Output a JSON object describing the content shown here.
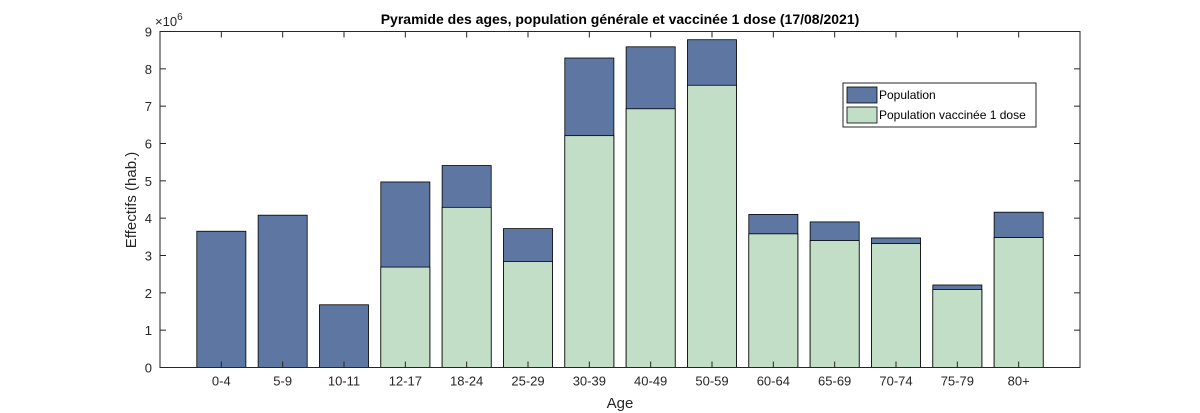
{
  "chart_data": {
    "type": "bar",
    "stacked": "overlay",
    "title": "Pyramide des ages, population générale et vaccinée 1 dose (17/08/2021)",
    "xlabel": "Age",
    "ylabel": "Effectifs (hab.)",
    "y_exponent_label": "×10",
    "y_exponent_power": "6",
    "ylim": [
      0,
      9000000
    ],
    "yticks": [
      0,
      1,
      2,
      3,
      4,
      5,
      6,
      7,
      8,
      9
    ],
    "grid": false,
    "legend_position": "top-right",
    "categories": [
      "0-4",
      "5-9",
      "10-11",
      "12-17",
      "18-24",
      "25-29",
      "30-39",
      "40-49",
      "50-59",
      "60-64",
      "65-69",
      "70-74",
      "75-79",
      "80+"
    ],
    "series": [
      {
        "name": "Population",
        "color": "#5e77a2",
        "values": [
          3650000,
          4080000,
          1680000,
          4970000,
          5410000,
          3720000,
          8290000,
          8590000,
          8780000,
          4100000,
          3900000,
          3470000,
          2210000,
          4160000
        ]
      },
      {
        "name": "Population vaccinée 1 dose",
        "color": "#c2dec6",
        "values": [
          0,
          0,
          0,
          2690000,
          4290000,
          2840000,
          6210000,
          6930000,
          7560000,
          3580000,
          3400000,
          3320000,
          2090000,
          3480000
        ]
      }
    ]
  }
}
